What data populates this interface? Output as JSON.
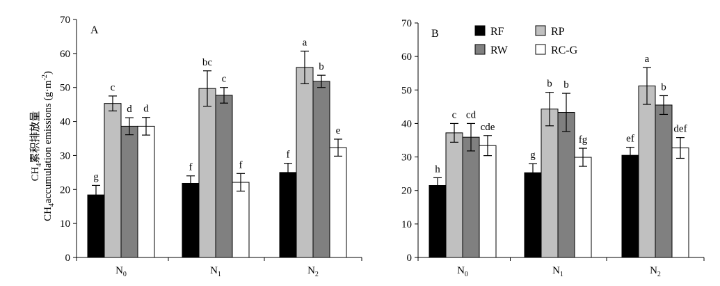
{
  "figure": {
    "ylabel_cn": "累积排放量",
    "ylabel_en": "accumulation emissions (g·m",
    "ylabel_en_unit_exp": "-2",
    "ylabel_en_close": ")",
    "ylabel_prefix": "CH",
    "ylabel_prefix_sub": "4"
  },
  "legend": [
    {
      "label": "RF",
      "color": "#000000"
    },
    {
      "label": "RP",
      "color": "#c0c0c0"
    },
    {
      "label": "RW",
      "color": "#808080"
    },
    {
      "label": "RC-G",
      "color": "#ffffff"
    }
  ],
  "chart_data": [
    {
      "type": "bar",
      "panel": "A",
      "categories": [
        "N0",
        "N1",
        "N2"
      ],
      "category_labels": [
        {
          "main": "N",
          "sub": "0"
        },
        {
          "main": "N",
          "sub": "1"
        },
        {
          "main": "N",
          "sub": "2"
        }
      ],
      "ylim": [
        0,
        70
      ],
      "yticks": [
        0,
        10,
        20,
        30,
        40,
        50,
        60,
        70
      ],
      "series": [
        {
          "name": "RF",
          "values": [
            18.4,
            21.8,
            25.0
          ],
          "errors": [
            2.8,
            2.2,
            2.7
          ],
          "letters": [
            "g",
            "f",
            "f"
          ]
        },
        {
          "name": "RP",
          "values": [
            45.3,
            49.7,
            55.9
          ],
          "errors": [
            2.2,
            5.2,
            4.8
          ],
          "letters": [
            "c",
            "bc",
            "a"
          ]
        },
        {
          "name": "RW",
          "values": [
            38.6,
            47.7,
            51.8
          ],
          "errors": [
            2.5,
            2.3,
            1.8
          ],
          "letters": [
            "d",
            "c",
            "b"
          ]
        },
        {
          "name": "RC-G",
          "values": [
            38.6,
            22.1,
            32.3
          ],
          "errors": [
            2.6,
            2.6,
            2.5
          ],
          "letters": [
            "d",
            "f",
            "e"
          ]
        }
      ]
    },
    {
      "type": "bar",
      "panel": "B",
      "categories": [
        "N0",
        "N1",
        "N2"
      ],
      "category_labels": [
        {
          "main": "N",
          "sub": "0"
        },
        {
          "main": "N",
          "sub": "1"
        },
        {
          "main": "N",
          "sub": "2"
        }
      ],
      "ylim": [
        0,
        70
      ],
      "yticks": [
        0,
        10,
        20,
        30,
        40,
        50,
        60,
        70
      ],
      "series": [
        {
          "name": "RF",
          "values": [
            21.5,
            25.3,
            30.5
          ],
          "errors": [
            2.3,
            2.7,
            2.4
          ],
          "letters": [
            "h",
            "g",
            "ef"
          ]
        },
        {
          "name": "RP",
          "values": [
            37.2,
            44.3,
            51.2
          ],
          "errors": [
            2.8,
            5.0,
            5.5
          ],
          "letters": [
            "c",
            "b",
            "a"
          ]
        },
        {
          "name": "RW",
          "values": [
            35.9,
            43.3,
            45.5
          ],
          "errors": [
            4.1,
            5.7,
            2.8
          ],
          "letters": [
            "cd",
            "b",
            "b"
          ]
        },
        {
          "name": "RC-G",
          "values": [
            33.4,
            29.9,
            32.7
          ],
          "errors": [
            3.0,
            2.7,
            3.1
          ],
          "letters": [
            "cde",
            "fg",
            "def"
          ]
        }
      ]
    }
  ]
}
